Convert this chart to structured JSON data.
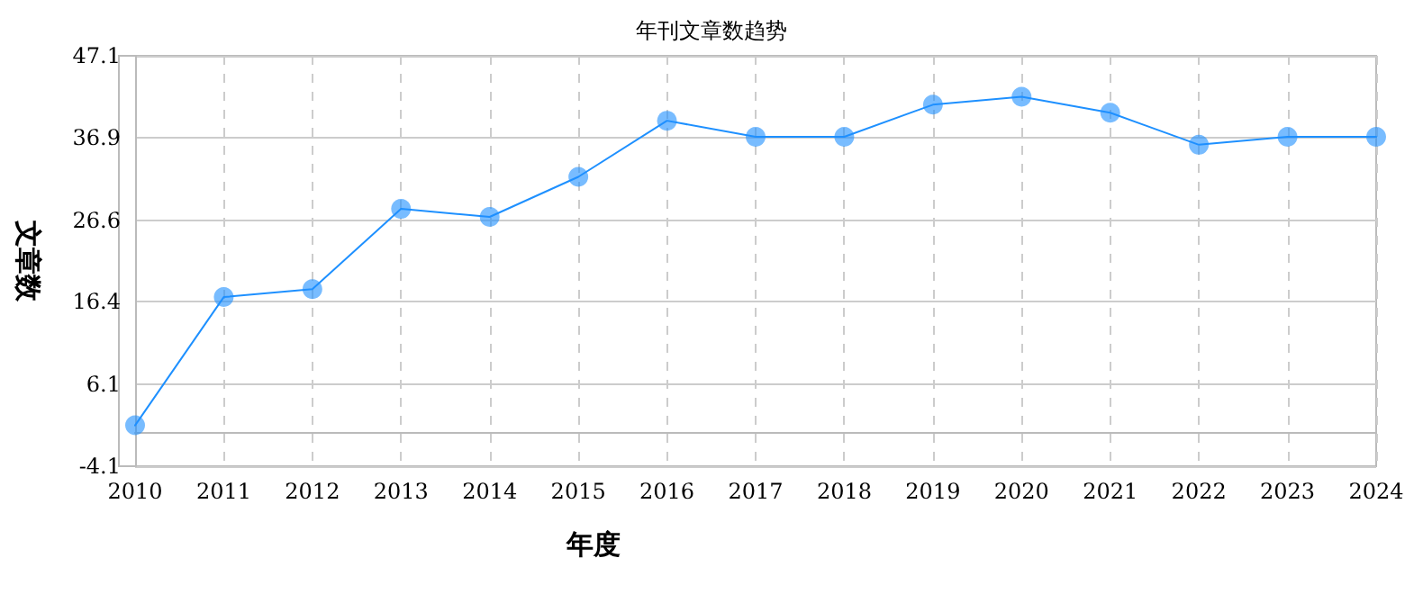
{
  "chart_data": {
    "type": "line",
    "title": "年刊文章数趋势",
    "xlabel": "年度",
    "ylabel": "文章数",
    "categories": [
      "2010",
      "2011",
      "2012",
      "2013",
      "2014",
      "2015",
      "2016",
      "2017",
      "2018",
      "2019",
      "2020",
      "2021",
      "2022",
      "2023",
      "2024"
    ],
    "series": [
      {
        "color": "#1e90ff",
        "values": [
          1,
          17,
          18,
          28,
          27,
          32,
          39,
          37,
          37,
          41,
          42,
          40,
          36,
          37,
          37
        ]
      }
    ],
    "ylim": [
      -4.1,
      47.1
    ],
    "yticks": [
      -4.1,
      6.1,
      16.4,
      26.6,
      36.9,
      47.1
    ],
    "grid": true,
    "marker": "circle",
    "line_style": "solid"
  }
}
